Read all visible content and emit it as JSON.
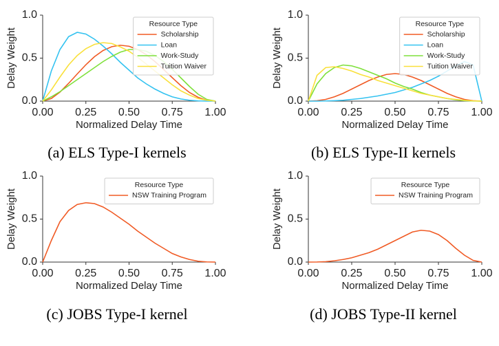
{
  "chart_data": [
    {
      "type": "line",
      "caption": "(a) ELS Type-I kernels",
      "xlabel": "Normalized Delay Time",
      "ylabel": "Delay Weight",
      "xlim": [
        0,
        1
      ],
      "ylim": [
        0,
        1
      ],
      "xticks": [
        {
          "value": 0,
          "label": "0.00"
        },
        {
          "value": 0.25,
          "label": "0.25"
        },
        {
          "value": 0.5,
          "label": "0.50"
        },
        {
          "value": 0.75,
          "label": "0.75"
        },
        {
          "value": 1,
          "label": "1.00"
        }
      ],
      "yticks": [
        {
          "value": 0,
          "label": "0.0"
        },
        0.5,
        {
          "value": 1,
          "label": "1.0"
        }
      ],
      "legend_title": "Resource Type",
      "legend": "upper right",
      "x": [
        0,
        0.05,
        0.1,
        0.15,
        0.2,
        0.25,
        0.3,
        0.35,
        0.4,
        0.45,
        0.5,
        0.55,
        0.6,
        0.65,
        0.7,
        0.75,
        0.8,
        0.85,
        0.9,
        0.95,
        1
      ],
      "series": [
        {
          "name": "Scholarship",
          "color": "#f05a24",
          "values": [
            0,
            0.03,
            0.105,
            0.206,
            0.316,
            0.423,
            0.517,
            0.589,
            0.633,
            0.65,
            0.638,
            0.6,
            0.54,
            0.46,
            0.368,
            0.273,
            0.18,
            0.1,
            0.044,
            0.009,
            0
          ]
        },
        {
          "name": "Loan",
          "color": "#33c2f0",
          "values": [
            0,
            0.35,
            0.6,
            0.75,
            0.8,
            0.78,
            0.72,
            0.64,
            0.55,
            0.45,
            0.36,
            0.27,
            0.2,
            0.14,
            0.09,
            0.05,
            0.025,
            0.01,
            0.003,
            0,
            0
          ]
        },
        {
          "name": "Work-Study",
          "color": "#7ee03a",
          "values": [
            0,
            0.05,
            0.11,
            0.18,
            0.25,
            0.32,
            0.39,
            0.46,
            0.52,
            0.57,
            0.6,
            0.6,
            0.58,
            0.53,
            0.46,
            0.37,
            0.27,
            0.17,
            0.08,
            0.02,
            0
          ]
        },
        {
          "name": "Tuition Waiver",
          "color": "#f9e03a",
          "values": [
            0,
            0.13,
            0.28,
            0.42,
            0.53,
            0.61,
            0.66,
            0.68,
            0.67,
            0.63,
            0.58,
            0.51,
            0.43,
            0.35,
            0.27,
            0.19,
            0.12,
            0.07,
            0.03,
            0.01,
            0
          ]
        }
      ]
    },
    {
      "type": "line",
      "caption": "(b) ELS Type-II kernels",
      "xlabel": "Normalized Delay Time",
      "ylabel": "Delay Weight",
      "xlim": [
        0,
        1
      ],
      "ylim": [
        0,
        1
      ],
      "xticks": [
        {
          "value": 0,
          "label": "0.00"
        },
        {
          "value": 0.25,
          "label": "0.25"
        },
        {
          "value": 0.5,
          "label": "0.50"
        },
        {
          "value": 0.75,
          "label": "0.75"
        },
        {
          "value": 1,
          "label": "1.00"
        }
      ],
      "yticks": [
        {
          "value": 0,
          "label": "0.0"
        },
        0.5,
        {
          "value": 1,
          "label": "1.0"
        }
      ],
      "legend_title": "Resource Type",
      "legend": "upper right",
      "x": [
        0,
        0.05,
        0.1,
        0.15,
        0.2,
        0.25,
        0.3,
        0.35,
        0.4,
        0.45,
        0.5,
        0.55,
        0.6,
        0.65,
        0.7,
        0.75,
        0.8,
        0.85,
        0.9,
        0.95,
        1
      ],
      "series": [
        {
          "name": "Scholarship",
          "color": "#f05a24",
          "values": [
            0,
            0.005,
            0.02,
            0.05,
            0.09,
            0.14,
            0.19,
            0.24,
            0.28,
            0.31,
            0.32,
            0.31,
            0.28,
            0.24,
            0.19,
            0.14,
            0.09,
            0.05,
            0.02,
            0.005,
            0
          ]
        },
        {
          "name": "Loan",
          "color": "#33c2f0",
          "values": [
            0,
            0,
            0.002,
            0.005,
            0.01,
            0.02,
            0.03,
            0.045,
            0.06,
            0.08,
            0.1,
            0.13,
            0.16,
            0.2,
            0.24,
            0.29,
            0.35,
            0.41,
            0.46,
            0.42,
            0
          ]
        },
        {
          "name": "Work-Study",
          "color": "#7ee03a",
          "values": [
            0,
            0.2,
            0.32,
            0.39,
            0.42,
            0.41,
            0.38,
            0.34,
            0.3,
            0.26,
            0.21,
            0.17,
            0.14,
            0.1,
            0.07,
            0.05,
            0.03,
            0.015,
            0.005,
            0.001,
            0
          ]
        },
        {
          "name": "Tuition Waiver",
          "color": "#f9e03a",
          "values": [
            0,
            0.3,
            0.39,
            0.4,
            0.38,
            0.35,
            0.31,
            0.28,
            0.24,
            0.21,
            0.18,
            0.15,
            0.12,
            0.09,
            0.07,
            0.05,
            0.03,
            0.02,
            0.01,
            0.003,
            0
          ]
        }
      ]
    },
    {
      "type": "line",
      "caption": "(c) JOBS Type-I kernel",
      "xlabel": "Normalized Delay Time",
      "ylabel": "Delay Weight",
      "xlim": [
        0,
        1
      ],
      "ylim": [
        0,
        1
      ],
      "xticks": [
        {
          "value": 0,
          "label": "0.00"
        },
        {
          "value": 0.25,
          "label": "0.25"
        },
        {
          "value": 0.5,
          "label": "0.50"
        },
        {
          "value": 0.75,
          "label": "0.75"
        },
        {
          "value": 1,
          "label": "1.00"
        }
      ],
      "yticks": [
        {
          "value": 0,
          "label": "0.0"
        },
        0.5,
        {
          "value": 1,
          "label": "1.0"
        }
      ],
      "legend_title": "Resource Type",
      "legend": "upper right",
      "x": [
        0,
        0.05,
        0.1,
        0.15,
        0.2,
        0.25,
        0.3,
        0.35,
        0.4,
        0.45,
        0.5,
        0.55,
        0.6,
        0.65,
        0.7,
        0.75,
        0.8,
        0.85,
        0.9,
        0.95,
        1
      ],
      "series": [
        {
          "name": "NSW Training Program",
          "color": "#f05a24",
          "values": [
            0,
            0.25,
            0.47,
            0.6,
            0.67,
            0.69,
            0.68,
            0.64,
            0.58,
            0.51,
            0.44,
            0.36,
            0.29,
            0.22,
            0.16,
            0.1,
            0.06,
            0.03,
            0.01,
            0.002,
            0
          ]
        }
      ]
    },
    {
      "type": "line",
      "caption": "(d) JOBS Type-II kernel",
      "xlabel": "Normalized Delay Time",
      "ylabel": "Delay Weight",
      "xlim": [
        0,
        1
      ],
      "ylim": [
        0,
        1
      ],
      "xticks": [
        {
          "value": 0,
          "label": "0.00"
        },
        {
          "value": 0.25,
          "label": "0.25"
        },
        {
          "value": 0.5,
          "label": "0.50"
        },
        {
          "value": 0.75,
          "label": "0.75"
        },
        {
          "value": 1,
          "label": "1.00"
        }
      ],
      "yticks": [
        {
          "value": 0,
          "label": "0.0"
        },
        0.5,
        {
          "value": 1,
          "label": "1.0"
        }
      ],
      "legend_title": "Resource Type",
      "legend": "upper right",
      "x": [
        0,
        0.05,
        0.1,
        0.15,
        0.2,
        0.25,
        0.3,
        0.35,
        0.4,
        0.45,
        0.5,
        0.55,
        0.6,
        0.65,
        0.7,
        0.75,
        0.8,
        0.85,
        0.9,
        0.95,
        1
      ],
      "series": [
        {
          "name": "NSW Training Program",
          "color": "#f05a24",
          "values": [
            0,
            0.001,
            0.005,
            0.015,
            0.03,
            0.05,
            0.08,
            0.11,
            0.15,
            0.2,
            0.25,
            0.3,
            0.35,
            0.37,
            0.36,
            0.32,
            0.25,
            0.16,
            0.08,
            0.02,
            0
          ]
        }
      ]
    }
  ]
}
